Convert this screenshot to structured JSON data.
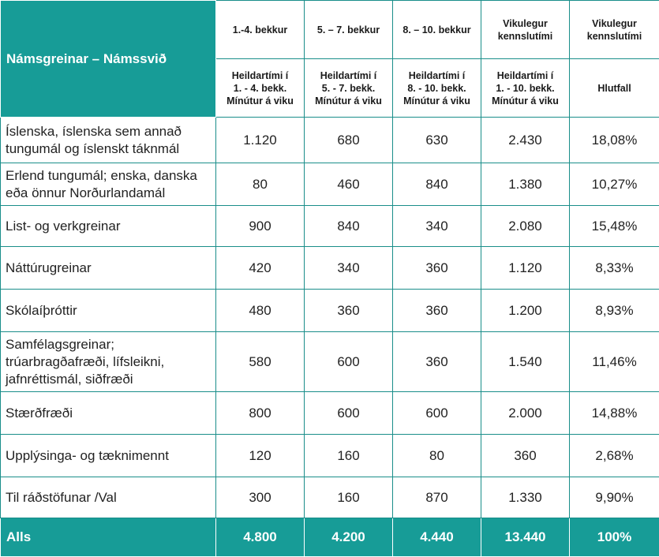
{
  "header": {
    "subject_title": "Námsgreinar – Námssvið",
    "groups": [
      "1.-4. bekkur",
      "5. – 7. bekkur",
      "8. – 10. bekkur",
      "Vikulegur kennslutími",
      "Vikulegur kennslutími"
    ],
    "subheads": [
      [
        "Heildartími í",
        "1. - 4. bekk.",
        "Mínútur á viku"
      ],
      [
        "Heildartími í",
        "5. - 7. bekk.",
        "Mínútur á viku"
      ],
      [
        "Heildartími í",
        "8. - 10. bekk.",
        "Mínútur á viku"
      ],
      [
        "Heildartími í",
        "1. - 10. bekk.",
        "Mínútur á viku"
      ],
      [
        "Hlutfall"
      ]
    ]
  },
  "rows": [
    {
      "label": [
        "Íslenska, íslenska sem annað",
        "tungumál og íslenskt táknmál"
      ],
      "values": [
        "1.120",
        "680",
        "630",
        "2.430",
        "18,08%"
      ]
    },
    {
      "label": [
        "Erlend tungumál; enska, danska",
        "eða önnur Norðurlandamál"
      ],
      "values": [
        "80",
        "460",
        "840",
        "1.380",
        "10,27%"
      ]
    },
    {
      "label": [
        "List- og verkgreinar"
      ],
      "values": [
        "900",
        "840",
        "340",
        "2.080",
        "15,48%"
      ]
    },
    {
      "label": [
        "Náttúrugreinar"
      ],
      "values": [
        "420",
        "340",
        "360",
        "1.120",
        "8,33%"
      ]
    },
    {
      "label": [
        "Skólaíþróttir"
      ],
      "values": [
        "480",
        "360",
        "360",
        "1.200",
        "8,93%"
      ]
    },
    {
      "label": [
        "Samfélagsgreinar;",
        "trúarbragðafræði, lífsleikni,",
        "jafnréttismál, siðfræði"
      ],
      "values": [
        "580",
        "600",
        "360",
        "1.540",
        "11,46%"
      ]
    },
    {
      "label": [
        "Stærðfræði"
      ],
      "values": [
        "800",
        "600",
        "600",
        "2.000",
        "14,88%"
      ]
    },
    {
      "label": [
        "Upplýsinga- og tæknimennt"
      ],
      "values": [
        "120",
        "160",
        "80",
        "360",
        "2,68%"
      ]
    },
    {
      "label": [
        "Til ráðstöfunar /Val"
      ],
      "values": [
        "300",
        "160",
        "870",
        "1.330",
        "9,90%"
      ]
    }
  ],
  "total": {
    "label": "Alls",
    "values": [
      "4.800",
      "4.200",
      "4.440",
      "13.440",
      "100%"
    ]
  }
}
